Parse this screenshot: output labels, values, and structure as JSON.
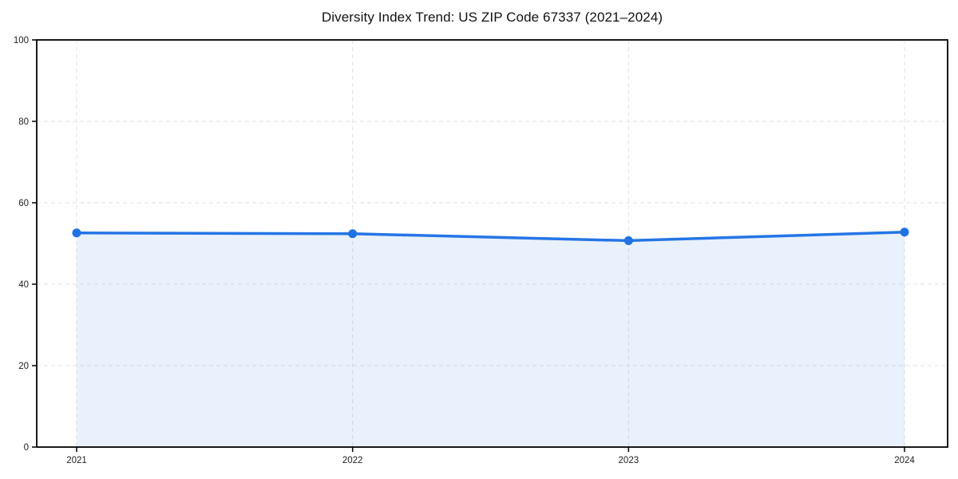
{
  "page": {
    "background": "#ffffff"
  },
  "chart_data": {
    "type": "area",
    "title": "Diversity Index Trend: US ZIP Code 67337 (2021–2024)",
    "categories": [
      "2021",
      "2022",
      "2023",
      "2024"
    ],
    "x": [
      2021,
      2022,
      2023,
      2024
    ],
    "series": [
      {
        "name": "Diversity Index",
        "values": [
          52.6,
          52.4,
          50.7,
          52.8
        ]
      }
    ],
    "xlabel": "",
    "ylabel": "",
    "ylim": [
      0,
      100
    ],
    "yticks": [
      0,
      20,
      40,
      60,
      80,
      100
    ],
    "grid": true,
    "grid_style": "dashed",
    "legend_position": "none",
    "marker": "circle",
    "colors": {
      "line": "#2575e6",
      "marker": "#2173e4",
      "fill": "rgba(37, 117, 230, 0.10)",
      "grid": "#e2e2e2",
      "spine": "#000000",
      "tick_text": "#222222",
      "title_text": "#111111",
      "background": "#ffffff"
    }
  }
}
